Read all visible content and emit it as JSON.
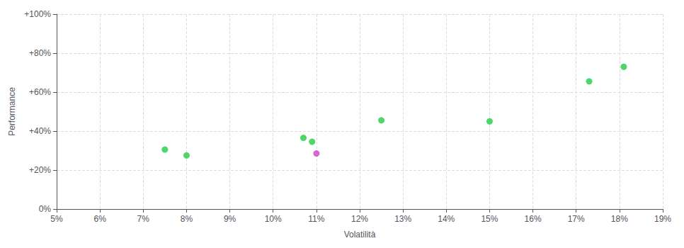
{
  "chart_data": {
    "type": "scatter",
    "xlabel": "Volatilità",
    "ylabel": "Performance",
    "xlim": [
      0.05,
      0.19
    ],
    "ylim": [
      0.0,
      1.0
    ],
    "xticks": [
      {
        "value": 0.05,
        "label": "5%"
      },
      {
        "value": 0.06,
        "label": "6%"
      },
      {
        "value": 0.07,
        "label": "7%"
      },
      {
        "value": 0.08,
        "label": "8%"
      },
      {
        "value": 0.09,
        "label": "9%"
      },
      {
        "value": 0.1,
        "label": "10%"
      },
      {
        "value": 0.11,
        "label": "11%"
      },
      {
        "value": 0.12,
        "label": "12%"
      },
      {
        "value": 0.13,
        "label": "13%"
      },
      {
        "value": 0.14,
        "label": "14%"
      },
      {
        "value": 0.15,
        "label": "15%"
      },
      {
        "value": 0.16,
        "label": "16%"
      },
      {
        "value": 0.17,
        "label": "17%"
      },
      {
        "value": 0.18,
        "label": "18%"
      },
      {
        "value": 0.19,
        "label": "19%"
      }
    ],
    "yticks": [
      {
        "value": 0.0,
        "label": "0%"
      },
      {
        "value": 0.2,
        "label": "+20%"
      },
      {
        "value": 0.4,
        "label": "+40%"
      },
      {
        "value": 0.6,
        "label": "+60%"
      },
      {
        "value": 0.8,
        "label": "+80%"
      },
      {
        "value": 1.0,
        "label": "+100%"
      }
    ],
    "grid": true,
    "series": [
      {
        "color": "#22cc44",
        "x": [
          0.075,
          0.08,
          0.107,
          0.109,
          0.125,
          0.15,
          0.173,
          0.181
        ],
        "values": [
          0.305,
          0.275,
          0.365,
          0.345,
          0.455,
          0.45,
          0.655,
          0.73
        ]
      },
      {
        "color": "#cc44cc",
        "x": [
          0.11
        ],
        "values": [
          0.285
        ]
      }
    ]
  }
}
